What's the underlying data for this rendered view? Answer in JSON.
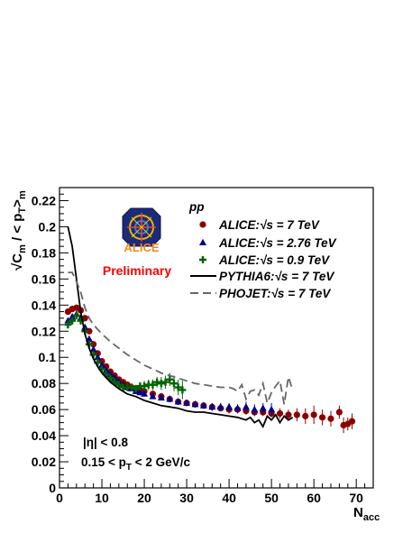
{
  "chart_data": {
    "type": "scatter",
    "title": "",
    "xlabel": {
      "main": "N",
      "sub": "acc"
    },
    "ylabel": {
      "main": "√C",
      "sub1": "m",
      "mid": " / < p",
      "sub2": "T",
      "end": ">",
      "sub3": "m"
    },
    "xlim": [
      0,
      74
    ],
    "ylim": [
      0,
      0.23
    ],
    "x_ticks": [
      0,
      10,
      20,
      30,
      40,
      50,
      60,
      70
    ],
    "y_ticks": [
      0,
      0.02,
      0.04,
      0.06,
      0.08,
      0.1,
      0.12,
      0.14,
      0.16,
      0.18,
      0.2,
      0.22
    ],
    "y_tick_labels": [
      "0",
      "0.02",
      "0.04",
      "0.06",
      "0.08",
      "0.1",
      "0.12",
      "0.14",
      "0.16",
      "0.18",
      "0.2",
      "0.22"
    ],
    "grid": false,
    "legend_position": "top-right",
    "legend_header": "pp",
    "annotations": {
      "preliminary": "Preliminary",
      "logo_text": "ALICE",
      "eta_cut": "|η| < 0.8",
      "pt_cut": {
        "pre": "0.15 < p",
        "sub": "T",
        "post": " < 2 GeV/c"
      }
    },
    "series": [
      {
        "name_parts": {
          "pre": "ALICE:",
          "root": "√s",
          "post": " = 7 TeV"
        },
        "marker": "circle",
        "color": "#8b0000",
        "x": [
          2,
          3,
          4,
          5,
          6,
          7,
          8,
          9,
          10,
          11,
          12,
          13,
          14,
          15,
          16,
          17,
          18,
          19,
          20,
          22,
          24,
          26,
          28,
          30,
          32,
          34,
          36,
          38,
          40,
          42,
          44,
          46,
          48,
          50,
          52,
          54,
          56,
          58,
          60,
          62,
          64,
          66,
          67,
          68,
          69
        ],
        "y": [
          0.135,
          0.137,
          0.138,
          0.136,
          0.13,
          0.12,
          0.11,
          0.103,
          0.097,
          0.093,
          0.089,
          0.086,
          0.083,
          0.081,
          0.079,
          0.077,
          0.076,
          0.075,
          0.074,
          0.072,
          0.07,
          0.068,
          0.066,
          0.065,
          0.064,
          0.063,
          0.062,
          0.061,
          0.06,
          0.06,
          0.059,
          0.058,
          0.058,
          0.057,
          0.057,
          0.056,
          0.056,
          0.055,
          0.056,
          0.054,
          0.053,
          0.058,
          0.048,
          0.049,
          0.051
        ],
        "err": [
          0.002,
          0.002,
          0.002,
          0.002,
          0.002,
          0.002,
          0.002,
          0.002,
          0.002,
          0.002,
          0.002,
          0.002,
          0.002,
          0.002,
          0.002,
          0.002,
          0.002,
          0.002,
          0.002,
          0.002,
          0.002,
          0.002,
          0.002,
          0.002,
          0.002,
          0.002,
          0.002,
          0.002,
          0.003,
          0.003,
          0.003,
          0.003,
          0.003,
          0.003,
          0.004,
          0.004,
          0.005,
          0.006,
          0.007,
          0.006,
          0.006,
          0.005,
          0.006,
          0.005,
          0.006
        ]
      },
      {
        "name_parts": {
          "pre": "ALICE:",
          "root": "√s",
          "post": " = 2.76 TeV"
        },
        "marker": "triangle",
        "color": "#00008b",
        "x": [
          2,
          3,
          4,
          5,
          6,
          7,
          8,
          9,
          10,
          11,
          12,
          13,
          14,
          15,
          16,
          17,
          18,
          19,
          20,
          22,
          24,
          26,
          28,
          30,
          32,
          34,
          36,
          38,
          40,
          42,
          44,
          46,
          48,
          50
        ],
        "y": [
          0.128,
          0.131,
          0.133,
          0.13,
          0.123,
          0.114,
          0.106,
          0.1,
          0.094,
          0.09,
          0.087,
          0.084,
          0.081,
          0.079,
          0.077,
          0.076,
          0.074,
          0.073,
          0.072,
          0.07,
          0.069,
          0.068,
          0.066,
          0.065,
          0.064,
          0.063,
          0.062,
          0.062,
          0.062,
          0.061,
          0.062,
          0.06,
          0.061,
          0.06
        ],
        "err": [
          0.002,
          0.002,
          0.002,
          0.002,
          0.002,
          0.002,
          0.002,
          0.002,
          0.002,
          0.002,
          0.002,
          0.002,
          0.002,
          0.002,
          0.002,
          0.002,
          0.002,
          0.002,
          0.002,
          0.002,
          0.002,
          0.002,
          0.002,
          0.002,
          0.002,
          0.002,
          0.003,
          0.003,
          0.003,
          0.003,
          0.004,
          0.004,
          0.004,
          0.005
        ]
      },
      {
        "name_parts": {
          "pre": "ALICE:",
          "root": "√s",
          "post": " = 0.9 TeV"
        },
        "marker": "cross",
        "color": "#006400",
        "x": [
          2,
          3,
          4,
          5,
          6,
          7,
          8,
          9,
          10,
          11,
          12,
          13,
          14,
          15,
          16,
          17,
          18,
          19,
          20,
          21,
          22,
          23,
          24,
          25,
          26,
          27,
          28,
          29
        ],
        "y": [
          0.125,
          0.128,
          0.132,
          0.128,
          0.12,
          0.11,
          0.102,
          0.096,
          0.091,
          0.087,
          0.084,
          0.081,
          0.079,
          0.077,
          0.077,
          0.077,
          0.076,
          0.078,
          0.078,
          0.079,
          0.079,
          0.081,
          0.08,
          0.081,
          0.083,
          0.08,
          0.077,
          0.075
        ],
        "err": [
          0.003,
          0.003,
          0.003,
          0.003,
          0.003,
          0.003,
          0.003,
          0.003,
          0.003,
          0.003,
          0.003,
          0.003,
          0.003,
          0.003,
          0.003,
          0.003,
          0.003,
          0.003,
          0.004,
          0.004,
          0.004,
          0.004,
          0.005,
          0.005,
          0.005,
          0.006,
          0.006,
          0.007
        ]
      },
      {
        "name_parts": {
          "pre": "PYTHIA6:",
          "root": "√s",
          "post": " = 7 TeV"
        },
        "marker": "line",
        "color": "#000000",
        "x": [
          2,
          3,
          4,
          5,
          6,
          7,
          8,
          9,
          10,
          12,
          14,
          16,
          18,
          20,
          22,
          24,
          26,
          28,
          30,
          32,
          34,
          36,
          38,
          40,
          42,
          44,
          45,
          46,
          47,
          48,
          49,
          50,
          51,
          52,
          53,
          54,
          55
        ],
        "y": [
          0.2,
          0.185,
          0.16,
          0.135,
          0.118,
          0.107,
          0.099,
          0.093,
          0.088,
          0.081,
          0.076,
          0.072,
          0.07,
          0.067,
          0.065,
          0.063,
          0.062,
          0.061,
          0.059,
          0.058,
          0.058,
          0.057,
          0.056,
          0.055,
          0.054,
          0.052,
          0.054,
          0.05,
          0.052,
          0.047,
          0.055,
          0.052,
          0.056,
          0.05,
          0.055,
          0.052,
          0.054
        ]
      },
      {
        "name_parts": {
          "pre": "PHOJET:",
          "root": "√s",
          "post": " = 7 TeV"
        },
        "marker": "dashed",
        "color": "#666666",
        "x": [
          2,
          3,
          4,
          5,
          6,
          7,
          8,
          10,
          12,
          14,
          16,
          18,
          20,
          22,
          24,
          26,
          28,
          30,
          32,
          34,
          36,
          38,
          40,
          41,
          42,
          43,
          44,
          45,
          46,
          47,
          48,
          49,
          50,
          51,
          52,
          53,
          54,
          55
        ],
        "y": [
          0.165,
          0.165,
          0.158,
          0.15,
          0.138,
          0.13,
          0.125,
          0.118,
          0.112,
          0.107,
          0.102,
          0.098,
          0.094,
          0.091,
          0.088,
          0.086,
          0.084,
          0.082,
          0.08,
          0.079,
          0.078,
          0.077,
          0.077,
          0.076,
          0.074,
          0.079,
          0.068,
          0.074,
          0.075,
          0.071,
          0.08,
          0.065,
          0.073,
          0.078,
          0.082,
          0.064,
          0.085,
          0.075
        ]
      }
    ]
  }
}
